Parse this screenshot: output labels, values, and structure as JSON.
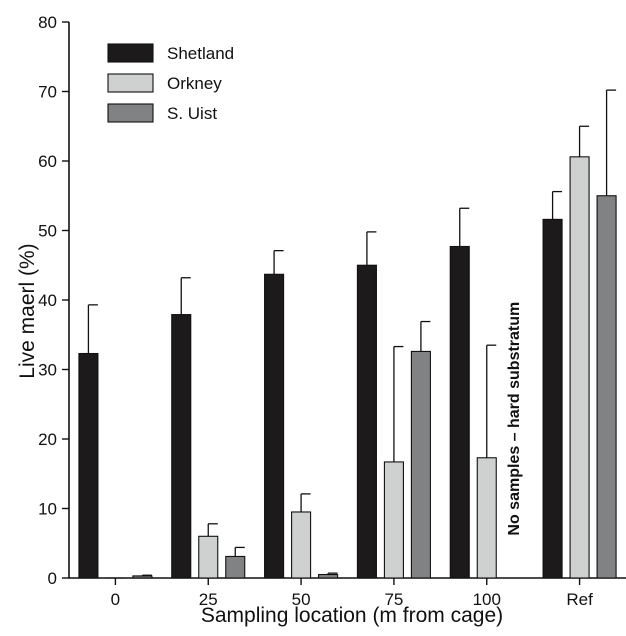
{
  "chart_data": {
    "type": "bar",
    "title": "",
    "xlabel": "Sampling location (m from cage)",
    "ylabel": "Live maerl (%)",
    "ylim": [
      0,
      80
    ],
    "yticks": [
      0,
      10,
      20,
      30,
      40,
      50,
      60,
      70,
      80
    ],
    "grid": false,
    "legend_position": "top-left",
    "categories": [
      "0",
      "25",
      "50",
      "75",
      "100",
      "Ref"
    ],
    "series": [
      {
        "name": "Shetland",
        "color": "#1c1a1b",
        "values": [
          32.3,
          37.9,
          43.7,
          45.0,
          47.7,
          51.6
        ],
        "errors": [
          7.0,
          5.3,
          3.4,
          4.8,
          5.5,
          4.0
        ]
      },
      {
        "name": "Orkney",
        "color": "#cfd0d0",
        "values": [
          0,
          6.0,
          9.5,
          16.7,
          17.3,
          60.6
        ],
        "errors": [
          0,
          1.8,
          2.6,
          16.6,
          16.2,
          4.4
        ]
      },
      {
        "name": "S. Uist",
        "color": "#808284",
        "values": [
          0.3,
          3.1,
          0.5,
          32.6,
          null,
          55.0
        ],
        "errors": [
          0.1,
          1.3,
          0.2,
          4.3,
          null,
          15.2
        ]
      }
    ],
    "annotations": [
      {
        "text": "No samples – hard substratum",
        "category": "100",
        "series": "S. Uist"
      }
    ]
  }
}
